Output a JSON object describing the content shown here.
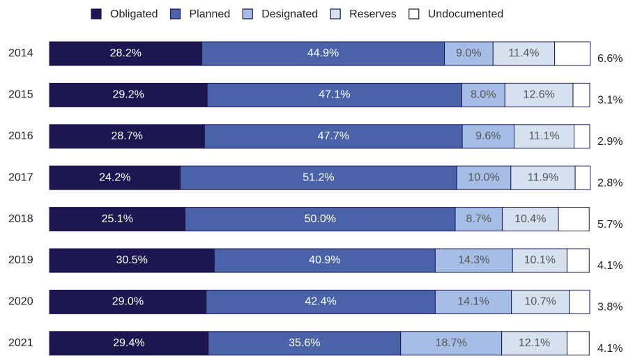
{
  "chart_data": {
    "type": "stacked_barh",
    "categories": [
      "2014",
      "2015",
      "2016",
      "2017",
      "2018",
      "2019",
      "2020",
      "2021"
    ],
    "xlim": [
      0,
      100
    ],
    "legend": "top",
    "series": [
      {
        "name": "Obligated",
        "color": "#1c1750",
        "values": [
          28.2,
          29.2,
          28.7,
          24.2,
          25.1,
          30.5,
          29.0,
          29.4
        ],
        "value_labels": [
          "28.2%",
          "29.2%",
          "28.7%",
          "24.2%",
          "25.1%",
          "30.5%",
          "29.0%",
          "29.4%"
        ]
      },
      {
        "name": "Planned",
        "color": "#4a62a8",
        "values": [
          44.9,
          47.1,
          47.7,
          51.2,
          50.0,
          40.9,
          42.4,
          35.6
        ],
        "value_labels": [
          "44.9%",
          "47.1%",
          "47.7%",
          "51.2%",
          "50.0%",
          "40.9%",
          "42.4%",
          "35.6%"
        ]
      },
      {
        "name": "Designated",
        "color": "#a6bde6",
        "values": [
          9.0,
          8.0,
          9.6,
          10.0,
          8.7,
          14.3,
          14.1,
          18.7
        ],
        "value_labels": [
          "9.0%",
          "8.0%",
          "9.6%",
          "10.0%",
          "8.7%",
          "14.3%",
          "14.1%",
          "18.7%"
        ]
      },
      {
        "name": "Reserves",
        "color": "#d6e1f0",
        "values": [
          11.4,
          12.6,
          11.1,
          11.9,
          10.4,
          10.1,
          10.7,
          12.1
        ],
        "value_labels": [
          "11.4%",
          "12.6%",
          "11.1%",
          "11.9%",
          "10.4%",
          "10.1%",
          "10.7%",
          "12.1%"
        ]
      },
      {
        "name": "Undocumented",
        "color": "#ffffff",
        "values": [
          6.6,
          3.1,
          2.9,
          2.8,
          5.7,
          4.1,
          3.8,
          4.1
        ],
        "value_labels": [
          "6.6%",
          "3.1%",
          "2.9%",
          "2.8%",
          "5.7%",
          "4.1%",
          "3.8%",
          "4.1%"
        ]
      }
    ]
  }
}
